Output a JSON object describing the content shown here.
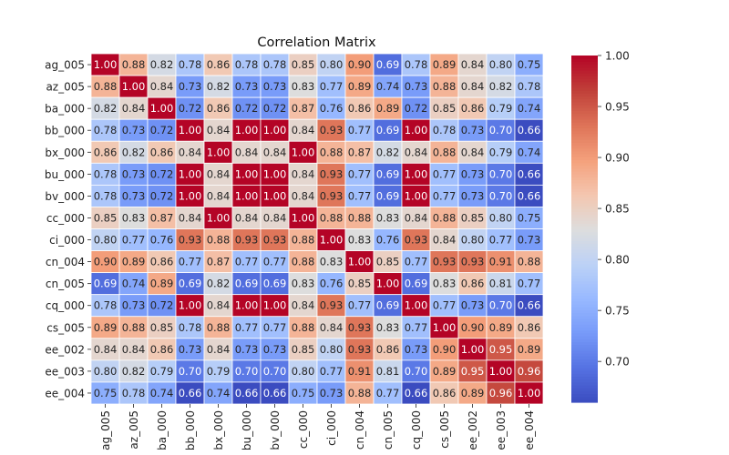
{
  "chart_data": {
    "type": "heatmap",
    "title": "Correlation Matrix",
    "xlabel": "",
    "ylabel": "",
    "row_labels": [
      "ag_005",
      "az_005",
      "ba_000",
      "bb_000",
      "bx_000",
      "bu_000",
      "bv_000",
      "cc_000",
      "ci_000",
      "cn_004",
      "cn_005",
      "cq_000",
      "cs_005",
      "ee_002",
      "ee_003",
      "ee_004"
    ],
    "col_labels": [
      "ag_005",
      "az_005",
      "ba_000",
      "bb_000",
      "bx_000",
      "bu_000",
      "bv_000",
      "cc_000",
      "ci_000",
      "cn_004",
      "cn_005",
      "cq_000",
      "cs_005",
      "ee_002",
      "ee_003",
      "ee_004"
    ],
    "values": [
      [
        1.0,
        0.88,
        0.82,
        0.78,
        0.86,
        0.78,
        0.78,
        0.85,
        0.8,
        0.9,
        0.69,
        0.78,
        0.89,
        0.84,
        0.8,
        0.75
      ],
      [
        0.88,
        1.0,
        0.84,
        0.73,
        0.82,
        0.73,
        0.73,
        0.83,
        0.77,
        0.89,
        0.74,
        0.73,
        0.88,
        0.84,
        0.82,
        0.78
      ],
      [
        0.82,
        0.84,
        1.0,
        0.72,
        0.86,
        0.72,
        0.72,
        0.87,
        0.76,
        0.86,
        0.89,
        0.72,
        0.85,
        0.86,
        0.79,
        0.74
      ],
      [
        0.78,
        0.73,
        0.72,
        1.0,
        0.84,
        1.0,
        1.0,
        0.84,
        0.93,
        0.77,
        0.69,
        1.0,
        0.78,
        0.73,
        0.7,
        0.66
      ],
      [
        0.86,
        0.82,
        0.86,
        0.84,
        1.0,
        0.84,
        0.84,
        1.0,
        0.88,
        0.87,
        0.82,
        0.84,
        0.88,
        0.84,
        0.79,
        0.74
      ],
      [
        0.78,
        0.73,
        0.72,
        1.0,
        0.84,
        1.0,
        1.0,
        0.84,
        0.93,
        0.77,
        0.69,
        1.0,
        0.77,
        0.73,
        0.7,
        0.66
      ],
      [
        0.78,
        0.73,
        0.72,
        1.0,
        0.84,
        1.0,
        1.0,
        0.84,
        0.93,
        0.77,
        0.69,
        1.0,
        0.77,
        0.73,
        0.7,
        0.66
      ],
      [
        0.85,
        0.83,
        0.87,
        0.84,
        1.0,
        0.84,
        0.84,
        1.0,
        0.88,
        0.88,
        0.83,
        0.84,
        0.88,
        0.85,
        0.8,
        0.75
      ],
      [
        0.8,
        0.77,
        0.76,
        0.93,
        0.88,
        0.93,
        0.93,
        0.88,
        1.0,
        0.83,
        0.76,
        0.93,
        0.84,
        0.8,
        0.77,
        0.73
      ],
      [
        0.9,
        0.89,
        0.86,
        0.77,
        0.87,
        0.77,
        0.77,
        0.88,
        0.83,
        1.0,
        0.85,
        0.77,
        0.93,
        0.93,
        0.91,
        0.88
      ],
      [
        0.69,
        0.74,
        0.89,
        0.69,
        0.82,
        0.69,
        0.69,
        0.83,
        0.76,
        0.85,
        1.0,
        0.69,
        0.83,
        0.86,
        0.81,
        0.77
      ],
      [
        0.78,
        0.73,
        0.72,
        1.0,
        0.84,
        1.0,
        1.0,
        0.84,
        0.93,
        0.77,
        0.69,
        1.0,
        0.77,
        0.73,
        0.7,
        0.66
      ],
      [
        0.89,
        0.88,
        0.85,
        0.78,
        0.88,
        0.77,
        0.77,
        0.88,
        0.84,
        0.93,
        0.83,
        0.77,
        1.0,
        0.9,
        0.89,
        0.86
      ],
      [
        0.84,
        0.84,
        0.86,
        0.73,
        0.84,
        0.73,
        0.73,
        0.85,
        0.8,
        0.93,
        0.86,
        0.73,
        0.9,
        1.0,
        0.95,
        0.89
      ],
      [
        0.8,
        0.82,
        0.79,
        0.7,
        0.79,
        0.7,
        0.7,
        0.8,
        0.77,
        0.91,
        0.81,
        0.7,
        0.89,
        0.95,
        1.0,
        0.96
      ],
      [
        0.75,
        0.78,
        0.74,
        0.66,
        0.74,
        0.66,
        0.66,
        0.75,
        0.73,
        0.88,
        0.77,
        0.66,
        0.86,
        0.89,
        0.96,
        1.0
      ]
    ],
    "value_format": "2 decimals",
    "colormap": "coolwarm",
    "vmin": 0.66,
    "vmax": 1.0,
    "colorbar_ticks": [
      0.7,
      0.75,
      0.8,
      0.85,
      0.9,
      0.95,
      1.0
    ],
    "colorbar_tick_labels": [
      "0.70",
      "0.75",
      "0.80",
      "0.85",
      "0.90",
      "0.95",
      "1.00"
    ],
    "grid_line_color": "#ffffff",
    "legend": "colorbar right"
  }
}
